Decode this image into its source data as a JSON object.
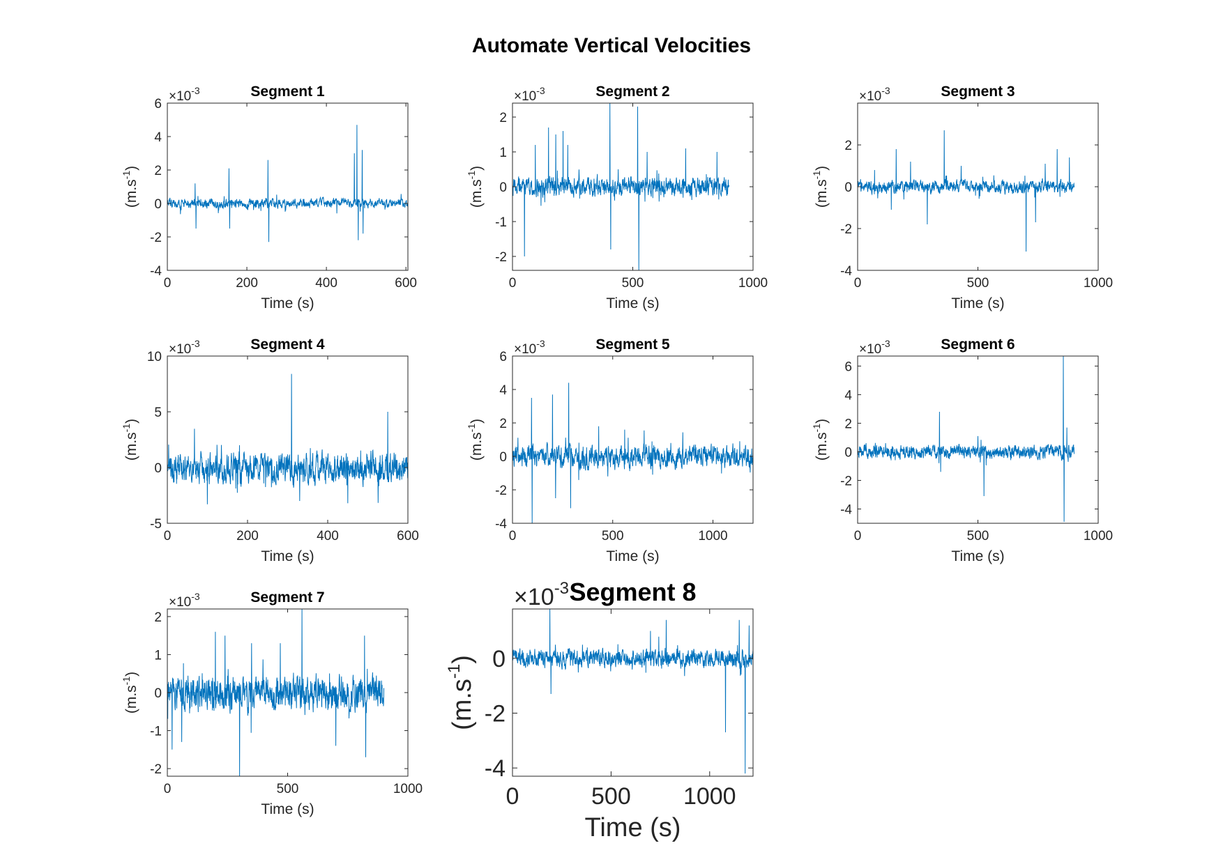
{
  "figure_title": "Automate Vertical Velocities",
  "line_color": "#0072BD",
  "chart_data": [
    {
      "type": "line",
      "title": "Segment 1",
      "xlabel": "Time (s)",
      "ylabel": "(m.s-1)",
      "exponent": "-3",
      "xlim": [
        0,
        605
      ],
      "ylim": [
        -4,
        6
      ],
      "xticks": [
        0,
        200,
        400,
        600
      ],
      "yticks": [
        -4,
        -2,
        0,
        2,
        4,
        6
      ],
      "x_end": 605,
      "noise": 0.18,
      "spikes": [
        [
          70,
          1.2
        ],
        [
          72,
          -1.5
        ],
        [
          155,
          2.1
        ],
        [
          157,
          -1.5
        ],
        [
          253,
          2.6
        ],
        [
          255,
          -2.3
        ],
        [
          470,
          3.0
        ],
        [
          477,
          4.7
        ],
        [
          480,
          -2.2
        ],
        [
          490,
          3.2
        ],
        [
          492,
          -1.8
        ]
      ]
    },
    {
      "type": "line",
      "title": "Segment 2",
      "xlabel": "Time (s)",
      "ylabel": "(m.s-1)",
      "exponent": "-3",
      "xlim": [
        0,
        1000
      ],
      "ylim": [
        -2.4,
        2.4
      ],
      "xticks": [
        0,
        500,
        1000
      ],
      "yticks": [
        -2,
        -1,
        0,
        1,
        2
      ],
      "x_end": 900,
      "noise": 0.17,
      "spikes": [
        [
          50,
          -2.0
        ],
        [
          95,
          1.2
        ],
        [
          150,
          1.7
        ],
        [
          180,
          1.5
        ],
        [
          210,
          1.6
        ],
        [
          230,
          1.2
        ],
        [
          405,
          2.4
        ],
        [
          408,
          -1.8
        ],
        [
          520,
          2.3
        ],
        [
          525,
          -2.4
        ],
        [
          560,
          1.0
        ],
        [
          720,
          1.1
        ],
        [
          850,
          1.0
        ]
      ]
    },
    {
      "type": "line",
      "title": "Segment 3",
      "xlabel": "Time (s)",
      "ylabel": "(m.s-1)",
      "exponent": "-3",
      "xlim": [
        0,
        1000
      ],
      "ylim": [
        -4,
        4
      ],
      "xticks": [
        0,
        500,
        1000
      ],
      "yticks": [
        -4,
        -2,
        0,
        2
      ],
      "x_end": 900,
      "noise": 0.2,
      "spikes": [
        [
          70,
          0.8
        ],
        [
          140,
          -1.1
        ],
        [
          160,
          1.8
        ],
        [
          220,
          1.2
        ],
        [
          290,
          -1.8
        ],
        [
          360,
          2.7
        ],
        [
          430,
          1.0
        ],
        [
          700,
          -3.1
        ],
        [
          740,
          -1.7
        ],
        [
          780,
          1.1
        ],
        [
          830,
          1.8
        ],
        [
          880,
          1.4
        ]
      ]
    },
    {
      "type": "line",
      "title": "Segment 4",
      "xlabel": "Time (s)",
      "ylabel": "(m.s-1)",
      "exponent": "-3",
      "xlim": [
        0,
        600
      ],
      "ylim": [
        -5,
        10
      ],
      "xticks": [
        0,
        200,
        400,
        600
      ],
      "yticks": [
        -5,
        0,
        5,
        10
      ],
      "x_end": 600,
      "noise": 0.9,
      "spikes": [
        [
          100,
          -3.3
        ],
        [
          180,
          2.0
        ],
        [
          310,
          8.4
        ],
        [
          330,
          -3.0
        ],
        [
          450,
          -3.2
        ],
        [
          550,
          5.0
        ]
      ]
    },
    {
      "type": "line",
      "title": "Segment 5",
      "xlabel": "Time (s)",
      "ylabel": "(m.s-1)",
      "exponent": "-3",
      "xlim": [
        0,
        1200
      ],
      "ylim": [
        -4,
        6
      ],
      "xticks": [
        0,
        500,
        1000
      ],
      "yticks": [
        -4,
        -2,
        0,
        2,
        4,
        6
      ],
      "x_end": 1200,
      "noise": 0.45,
      "spikes": [
        [
          95,
          3.5
        ],
        [
          98,
          -4.0
        ],
        [
          200,
          3.7
        ],
        [
          215,
          -2.5
        ],
        [
          280,
          4.4
        ],
        [
          290,
          -3.1
        ],
        [
          430,
          1.8
        ],
        [
          560,
          1.6
        ],
        [
          790,
          0.8
        ]
      ]
    },
    {
      "type": "line",
      "title": "Segment 6",
      "xlabel": "Time (s)",
      "ylabel": "(m.s-1)",
      "exponent": "-3",
      "xlim": [
        0,
        1000
      ],
      "ylim": [
        -5,
        6.7
      ],
      "xticks": [
        0,
        500,
        1000
      ],
      "yticks": [
        -4,
        -2,
        0,
        2,
        4,
        6
      ],
      "x_end": 900,
      "noise": 0.3,
      "spikes": [
        [
          340,
          2.8
        ],
        [
          345,
          -1.4
        ],
        [
          500,
          1.1
        ],
        [
          525,
          -3.1
        ],
        [
          855,
          6.7
        ],
        [
          858,
          -4.9
        ],
        [
          870,
          1.7
        ]
      ]
    },
    {
      "type": "line",
      "title": "Segment 7",
      "xlabel": "Time (s)",
      "ylabel": "(m.s-1)",
      "exponent": "-3",
      "xlim": [
        0,
        1000
      ],
      "ylim": [
        -2.2,
        2.2
      ],
      "xticks": [
        0,
        500,
        1000
      ],
      "yticks": [
        -2,
        -1,
        0,
        1,
        2
      ],
      "x_end": 900,
      "noise": 0.3,
      "spikes": [
        [
          20,
          -1.5
        ],
        [
          60,
          -1.3
        ],
        [
          200,
          1.6
        ],
        [
          240,
          1.5
        ],
        [
          300,
          -2.2
        ],
        [
          350,
          1.3
        ],
        [
          470,
          1.3
        ],
        [
          560,
          2.2
        ],
        [
          700,
          -1.4
        ],
        [
          820,
          1.5
        ],
        [
          825,
          -1.7
        ]
      ]
    },
    {
      "type": "line",
      "title": "Segment 8",
      "xlabel": "Time (s)",
      "ylabel": "(m.s-1)",
      "exponent": "-3",
      "xlim": [
        0,
        1220
      ],
      "ylim": [
        -4.3,
        1.8
      ],
      "xticks": [
        0,
        500,
        1000
      ],
      "yticks": [
        -4,
        -2,
        0
      ],
      "x_end": 1220,
      "noise": 0.22,
      "spikes": [
        [
          190,
          1.8
        ],
        [
          195,
          -1.3
        ],
        [
          700,
          1.0
        ],
        [
          780,
          1.4
        ],
        [
          1080,
          -2.7
        ],
        [
          1150,
          1.4
        ],
        [
          1180,
          -4.2
        ],
        [
          1200,
          1.2
        ]
      ]
    }
  ]
}
